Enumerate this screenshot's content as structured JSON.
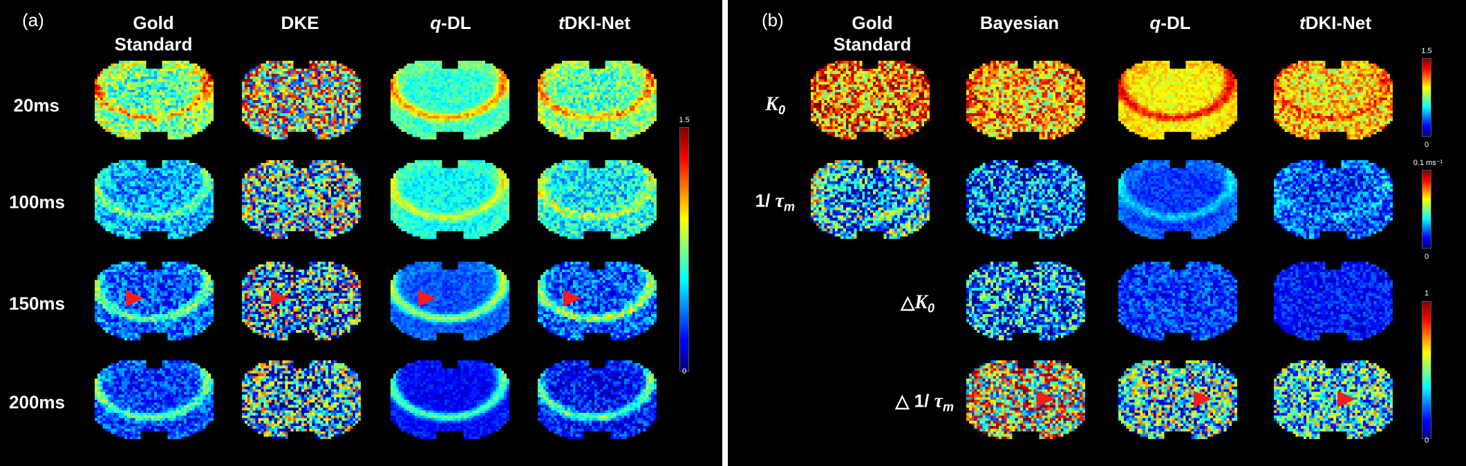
{
  "panel_a": {
    "label": "(a)",
    "col_headers": [
      {
        "text": "Gold\nStandard",
        "italic": ""
      },
      {
        "text": "DKE",
        "italic": ""
      },
      {
        "text": "-DL",
        "italic": "q"
      },
      {
        "text": "DKI-Net",
        "italic": "t"
      }
    ],
    "row_headers": [
      "20ms",
      "100ms",
      "150ms",
      "200ms"
    ],
    "colorbar": {
      "max": "1.5",
      "min": "0"
    }
  },
  "panel_b": {
    "label": "(b)",
    "col_headers": [
      {
        "text": "Gold\nStandard",
        "italic": ""
      },
      {
        "text": "Bayesian",
        "italic": ""
      },
      {
        "text": "-DL",
        "italic": "q"
      },
      {
        "text": "DKI-Net",
        "italic": "t"
      }
    ],
    "row_headers": [
      {
        "prefix": "",
        "var": "K",
        "sub": "0"
      },
      {
        "prefix": "1/ ",
        "var": "τ",
        "sub": "m"
      },
      {
        "prefix": "△",
        "var": "K",
        "sub": "0"
      },
      {
        "prefix": "△ 1/ ",
        "var": "τ",
        "sub": "m"
      }
    ],
    "colorbars": [
      {
        "max": "1.5",
        "min": "0"
      },
      {
        "max": "0.1 ms⁻¹",
        "min": "0"
      },
      {
        "max": "1",
        "min": "0"
      }
    ]
  },
  "colors": {
    "background": "#000000",
    "divider": "#ffffff",
    "arrow": "#ff1a1a"
  },
  "colormap": "jet"
}
